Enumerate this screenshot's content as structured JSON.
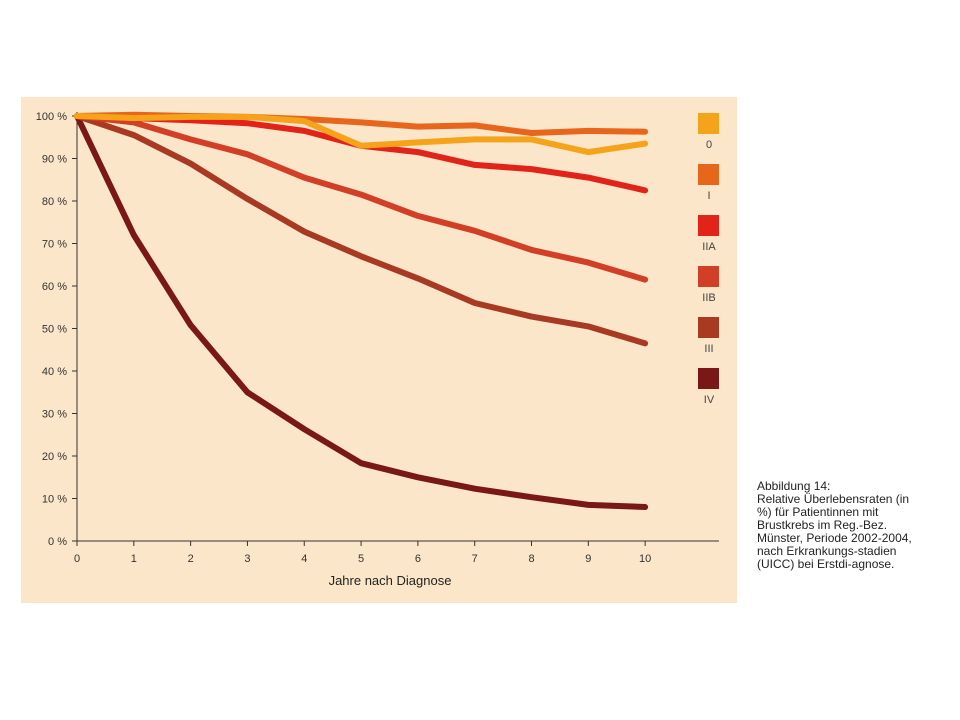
{
  "colors": {
    "panel_background": "#fbe6c9",
    "axis": "#333333"
  },
  "chart_data": {
    "type": "line",
    "xlabel": "Jahre nach Diagnose",
    "ylabel": "",
    "x": [
      0,
      1,
      2,
      3,
      4,
      5,
      6,
      7,
      8,
      9,
      10
    ],
    "xlim": [
      0,
      11.3
    ],
    "ylim": [
      0,
      100
    ],
    "y_ticks": [
      0,
      10,
      20,
      30,
      40,
      50,
      60,
      70,
      80,
      90,
      100
    ],
    "y_tick_labels": [
      "0 %",
      "10 %",
      "20 %",
      "30 %",
      "40 %",
      "50 %",
      "60 %",
      "70 %",
      "80 %",
      "90 %",
      "100 %"
    ],
    "x_tick_labels": [
      "0",
      "1",
      "2",
      "3",
      "4",
      "5",
      "6",
      "7",
      "8",
      "9",
      "10"
    ],
    "grid": false,
    "legend_position": "right",
    "series": [
      {
        "name": "0",
        "color": "#f5a31a",
        "values": [
          100,
          99.5,
          99.8,
          99.8,
          98.8,
          93,
          93.8,
          94.5,
          94.5,
          91.5,
          93.5
        ]
      },
      {
        "name": "I",
        "color": "#e8661c",
        "values": [
          100,
          100.3,
          100,
          99.8,
          99.3,
          98.5,
          97.5,
          97.8,
          96,
          96.5,
          96.3
        ]
      },
      {
        "name": "IIA",
        "color": "#e2231a",
        "values": [
          100,
          99.5,
          99,
          98.3,
          96.5,
          93,
          91.5,
          88.5,
          87.5,
          85.5,
          82.5
        ]
      },
      {
        "name": "IIB",
        "color": "#d13f26",
        "values": [
          100,
          98.5,
          94.5,
          91,
          85.5,
          81.5,
          76.5,
          73,
          68.5,
          65.5,
          61.5
        ]
      },
      {
        "name": "III",
        "color": "#a83a24",
        "values": [
          100,
          95.5,
          88.8,
          80.5,
          72.8,
          67,
          61.8,
          56,
          52.8,
          50.5,
          46.5
        ]
      },
      {
        "name": "IV",
        "color": "#7a1717",
        "values": [
          100,
          72,
          50.8,
          35,
          26.3,
          18.3,
          15,
          12.3,
          10.3,
          8.5,
          8
        ]
      }
    ]
  },
  "caption": {
    "heading": "Abbildung 14:",
    "body": "Relative Überlebensraten (in %) für Patientinnen mit Brustkrebs im Reg.-Bez. Münster, Periode 2002-2004, nach Erkrankungs-stadien (UICC) bei Erstdi-agnose."
  }
}
